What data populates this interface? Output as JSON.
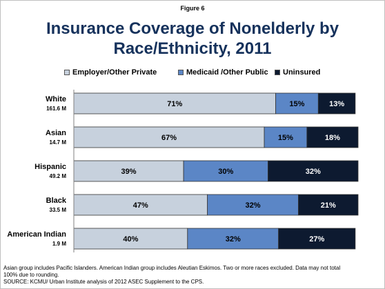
{
  "figure_label": "Figure 6",
  "title_lines": [
    "Insurance Coverage of Nonelderly by",
    "Race/Ethnicity, 2011"
  ],
  "colors": {
    "title": "#16325c",
    "employer": "#c7d1dd",
    "medicaid": "#5b86c6",
    "uninsured": "#0d1a30",
    "bar_border": "#333333"
  },
  "chart_data": {
    "type": "bar",
    "orientation": "horizontal",
    "stacked": true,
    "categories": [
      "White",
      "Asian",
      "Hispanic",
      "Black",
      "American Indian"
    ],
    "category_sublabels": [
      "161.6 M",
      "14.7 M",
      "49.2 M",
      "33.5 M",
      "1.9 M"
    ],
    "series": [
      {
        "name": "Employer/Other Private",
        "values": [
          71,
          67,
          39,
          47,
          40
        ],
        "labels": [
          "71%",
          "67%",
          "39%",
          "47%",
          "40%"
        ]
      },
      {
        "name": "Medicaid /Other Public",
        "values": [
          15,
          15,
          30,
          32,
          32
        ],
        "labels": [
          "15%",
          "15%",
          "30%",
          "32%",
          "32%"
        ]
      },
      {
        "name": "Uninsured",
        "values": [
          13,
          18,
          32,
          21,
          27
        ],
        "labels": [
          "13%",
          "18%",
          "32%",
          "21%",
          "27%"
        ]
      }
    ],
    "legend_position": "top",
    "xlim": [
      0,
      100
    ],
    "grid": false
  },
  "footnote_lines": [
    "Asian group includes Pacific Islanders. American Indian group includes Aleutian Eskimos. Two or more races excluded. Data may not total",
    "100% due to rounding.",
    "SOURCE: KCMU/ Urban Institute analysis of 2012 ASEC Supplement to the CPS."
  ]
}
